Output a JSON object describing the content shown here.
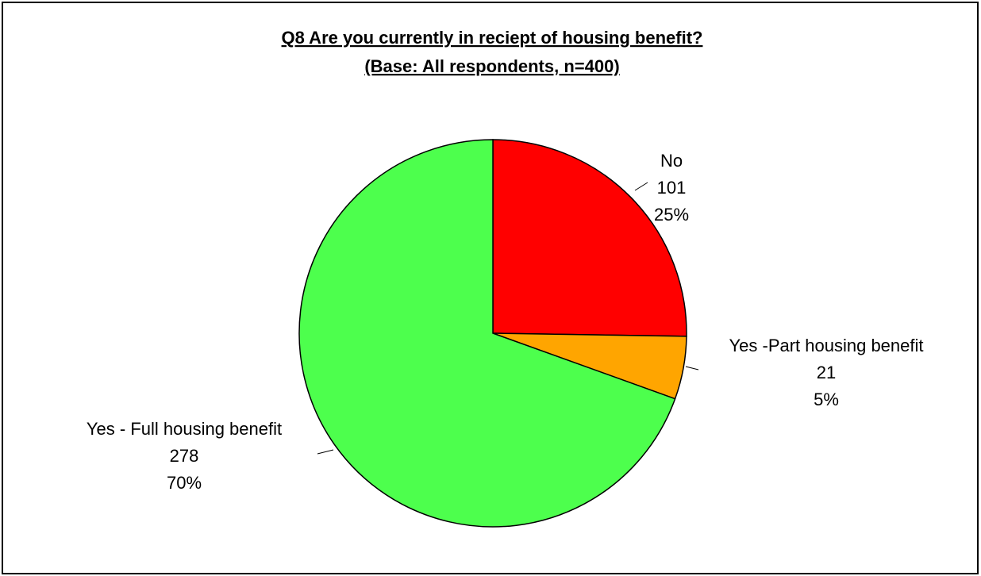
{
  "chart_data": {
    "type": "pie",
    "title": "Q8 Are you currently in reciept of housing benefit?",
    "subtitle": "(Base: All respondents, n=400)",
    "slices": [
      {
        "label": "No",
        "value": 101,
        "percent": "25%",
        "color": "#ff0000"
      },
      {
        "label": "Yes -Part housing benefit",
        "value": 21,
        "percent": "5%",
        "color": "#ffa500"
      },
      {
        "label": "Yes - Full housing benefit",
        "value": 278,
        "percent": "70%",
        "color": "#4dff4d"
      }
    ],
    "start_angle": "12 o'clock",
    "direction": "clockwise"
  }
}
